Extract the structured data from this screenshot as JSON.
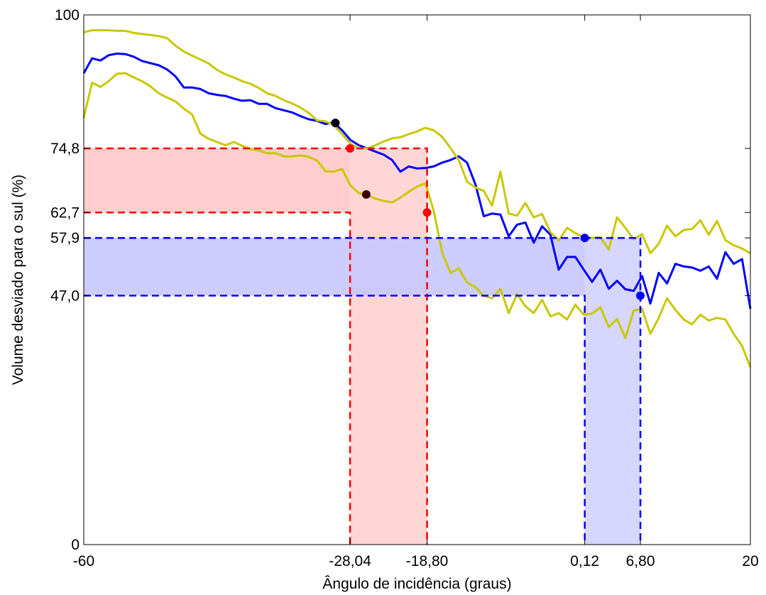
{
  "chart_data": {
    "type": "line",
    "xlabel": "Ângulo de incidência (graus)",
    "ylabel": "Volume desviado para o sul (%)",
    "xlim": [
      -60,
      20
    ],
    "ylim": [
      0,
      100
    ],
    "xticks": [
      {
        "value": -60,
        "label": "-60"
      },
      {
        "value": -28.04,
        "label": "-28,04"
      },
      {
        "value": -18.8,
        "label": "-18,80"
      },
      {
        "value": 0.12,
        "label": "0,12"
      },
      {
        "value": 6.8,
        "label": "6,80"
      },
      {
        "value": 20,
        "label": "20"
      }
    ],
    "yticks": [
      {
        "value": 0,
        "label": "0"
      },
      {
        "value": 47.0,
        "label": "47,0"
      },
      {
        "value": 57.9,
        "label": "57,9"
      },
      {
        "value": 62.7,
        "label": "62,7"
      },
      {
        "value": 74.8,
        "label": "74,8"
      },
      {
        "value": 100,
        "label": "100"
      }
    ],
    "grid": false,
    "colors": {
      "mean": "#0000ff",
      "bounds": "#c8c800",
      "red_region": "#ff0000",
      "red_fill": "#ffc8c8",
      "blue_region": "#0000ff",
      "blue_fill": "#c8c8ff",
      "black_point": "#000000",
      "dark_point": "#3a0000"
    },
    "series": [
      {
        "role": "mean",
        "x": [
          -60,
          -59,
          -58,
          -57,
          -56,
          -55,
          -54,
          -53,
          -52,
          -51,
          -50,
          -49,
          -48,
          -47,
          -46,
          -45,
          -44,
          -43,
          -42,
          -41,
          -40,
          -39,
          -38,
          -37,
          -36,
          -35,
          -34,
          -33,
          -32,
          -31,
          -30,
          -29,
          -28,
          -27,
          -26,
          -25,
          -24,
          -23,
          -22,
          -21,
          -20,
          -19,
          -18,
          -17,
          -16,
          -15,
          -14,
          -13,
          -12,
          -11,
          -10,
          -9,
          -8,
          -7,
          -6,
          -5,
          -4,
          -3,
          -2,
          -1,
          0,
          1,
          2,
          3,
          4,
          5,
          6,
          7,
          8,
          9,
          10,
          11,
          12,
          13,
          14,
          15,
          16,
          17,
          18,
          19,
          20
        ],
        "y": [
          89.0,
          91.8,
          91.4,
          92.4,
          92.7,
          92.6,
          92.1,
          91.3,
          90.9,
          90.5,
          89.7,
          88.4,
          86.3,
          86.3,
          86.0,
          85.2,
          84.9,
          84.7,
          84.2,
          83.8,
          83.9,
          83.2,
          83.2,
          82.4,
          82.0,
          81.6,
          80.9,
          80.3,
          80.0,
          79.4,
          79.7,
          78.2,
          76.4,
          75.4,
          74.8,
          74.2,
          73.6,
          72.6,
          70.4,
          71.4,
          71.0,
          71.1,
          71.4,
          72.1,
          72.6,
          73.3,
          72.1,
          68.0,
          62.0,
          62.5,
          62.3,
          58.2,
          60.4,
          60.8,
          57.0,
          60.1,
          58.5,
          51.9,
          54.3,
          54.3,
          51.9,
          49.6,
          51.9,
          48.3,
          49.8,
          48.2,
          47.9,
          50.7,
          45.5,
          51.3,
          49.3,
          53.0,
          52.5,
          52.3,
          51.7,
          52.5,
          50.2,
          55.2,
          53.0,
          53.9,
          44.5
        ]
      },
      {
        "role": "upper",
        "x": [
          -60,
          -59,
          -58,
          -57,
          -56,
          -55,
          -54,
          -53,
          -52,
          -51,
          -50,
          -49,
          -48,
          -47,
          -46,
          -45,
          -44,
          -43,
          -42,
          -41,
          -40,
          -39,
          -38,
          -37,
          -36,
          -35,
          -34,
          -33,
          -32,
          -31,
          -30,
          -29,
          -28,
          -27,
          -26,
          -25,
          -24,
          -23,
          -22,
          -21,
          -20,
          -19,
          -18,
          -17,
          -16,
          -15,
          -14,
          -13,
          -12,
          -11,
          -10,
          -9,
          -8,
          -7,
          -6,
          -5,
          -4,
          -3,
          -2,
          -1,
          0,
          1,
          2,
          3,
          4,
          5,
          6,
          7,
          8,
          9,
          10,
          11,
          12,
          13,
          14,
          15,
          16,
          17,
          18,
          19,
          20
        ],
        "y": [
          96.7,
          97.1,
          97.1,
          97.1,
          97.0,
          97.0,
          96.6,
          96.4,
          96.2,
          96.0,
          95.6,
          94.2,
          93.1,
          92.3,
          91.6,
          90.8,
          89.6,
          88.8,
          88.2,
          87.5,
          87.0,
          86.2,
          85.2,
          84.7,
          83.9,
          83.3,
          82.5,
          81.5,
          80.1,
          79.9,
          79.2,
          77.5,
          75.7,
          74.8,
          74.8,
          75.4,
          76.1,
          76.7,
          76.9,
          77.5,
          78.0,
          78.7,
          78.2,
          77.0,
          74.9,
          72.6,
          68.5,
          67.4,
          66.8,
          64.0,
          70.4,
          62.5,
          62.1,
          64.5,
          61.8,
          62.4,
          59.0,
          57.4,
          59.8,
          58.8,
          58.0,
          57.9,
          58.0,
          55.7,
          61.8,
          59.8,
          57.6,
          58.6,
          55.0,
          56.8,
          60.2,
          58.2,
          59.4,
          59.6,
          61.2,
          58.5,
          61.1,
          57.5,
          56.5,
          55.9,
          55.0
        ]
      },
      {
        "role": "lower",
        "x": [
          -60,
          -59,
          -58,
          -57,
          -56,
          -55,
          -54,
          -53,
          -52,
          -51,
          -50,
          -49,
          -48,
          -47,
          -46,
          -45,
          -44,
          -43,
          -42,
          -41,
          -40,
          -39,
          -38,
          -37,
          -36,
          -35,
          -34,
          -33,
          -32,
          -31,
          -30,
          -29,
          -28,
          -27,
          -26,
          -25,
          -24,
          -23,
          -22,
          -21,
          -20,
          -19,
          -18,
          -17,
          -16,
          -15,
          -14,
          -13,
          -12,
          -11,
          -10,
          -9,
          -8,
          -7,
          -6,
          -5,
          -4,
          -3,
          -2,
          -1,
          0,
          1,
          2,
          3,
          4,
          5,
          6,
          7,
          8,
          9,
          10,
          11,
          12,
          13,
          14,
          15,
          16,
          17,
          18,
          19,
          20
        ],
        "y": [
          80.6,
          87.2,
          86.4,
          87.5,
          88.9,
          89.0,
          88.2,
          87.5,
          86.5,
          85.2,
          84.4,
          83.7,
          82.3,
          81.2,
          77.6,
          76.6,
          76.0,
          75.4,
          76.0,
          75.3,
          74.7,
          74.4,
          73.9,
          73.9,
          73.3,
          73.3,
          73.5,
          73.2,
          72.5,
          70.5,
          70.4,
          70.9,
          67.8,
          66.4,
          66.0,
          65.3,
          64.9,
          64.6,
          65.5,
          66.6,
          67.6,
          68.2,
          63.0,
          55.2,
          51.3,
          52.1,
          49.5,
          48.6,
          47.0,
          46.5,
          48.3,
          43.7,
          47.3,
          45.0,
          43.7,
          46.2,
          43.1,
          43.7,
          42.5,
          45.3,
          43.4,
          43.6,
          44.8,
          41.1,
          42.6,
          39.0,
          44.2,
          44.5,
          39.8,
          42.8,
          46.5,
          44.3,
          42.5,
          41.6,
          43.4,
          42.3,
          42.8,
          42.5,
          39.8,
          37.5,
          33.5
        ]
      }
    ],
    "regions": [
      {
        "color_role": "red",
        "x_range": [
          -28.04,
          -18.8
        ],
        "y_range": [
          62.7,
          74.8
        ]
      },
      {
        "color_role": "blue",
        "x_range": [
          0.12,
          6.8
        ],
        "y_range": [
          47.0,
          57.9
        ]
      }
    ],
    "points": [
      {
        "x": -29.8,
        "y": 79.6,
        "color_role": "black_point"
      },
      {
        "x": -28.04,
        "y": 74.8,
        "color_role": "red_region"
      },
      {
        "x": -26.1,
        "y": 66.1,
        "color_role": "dark_point"
      },
      {
        "x": -18.8,
        "y": 62.7,
        "color_role": "red_region"
      },
      {
        "x": 0.12,
        "y": 57.9,
        "color_role": "blue_region"
      },
      {
        "x": 6.8,
        "y": 47.0,
        "color_role": "blue_region"
      }
    ]
  }
}
